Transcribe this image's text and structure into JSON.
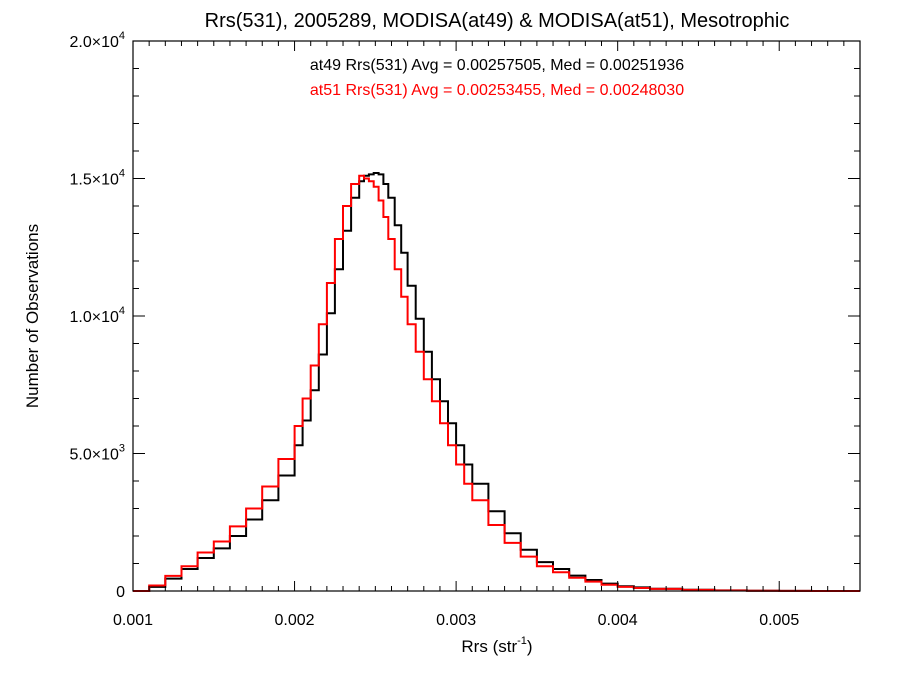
{
  "chart_data": {
    "type": "line",
    "title": "Rrs(531), 2005289, MODISA(at49) & MODISA(at51), Mesotrophic",
    "xlabel": "Rrs",
    "xlabel_unit": "(str",
    "xlabel_unit_exp": "-1",
    "xlabel_unit_close": ")",
    "ylabel": "Number of Observations",
    "xlim": [
      0.001,
      0.0055
    ],
    "ylim": [
      0,
      20000
    ],
    "x_ticks": [
      {
        "value": 0.001,
        "label": "0.001"
      },
      {
        "value": 0.002,
        "label": "0.002"
      },
      {
        "value": 0.003,
        "label": "0.003"
      },
      {
        "value": 0.004,
        "label": "0.004"
      },
      {
        "value": 0.005,
        "label": "0.005"
      }
    ],
    "y_ticks": [
      {
        "value": 0,
        "label": "0",
        "exp": ""
      },
      {
        "value": 5000,
        "label": "5.0×10",
        "exp": "3"
      },
      {
        "value": 10000,
        "label": "1.0×10",
        "exp": "4"
      },
      {
        "value": 15000,
        "label": "1.5×10",
        "exp": "4"
      },
      {
        "value": 20000,
        "label": "2.0×10",
        "exp": "4"
      }
    ],
    "annotations": [
      {
        "text": "at49 Rrs(531) Avg = 0.00257505, Med = 0.00251936",
        "color": "#000000"
      },
      {
        "text": "at51 Rrs(531) Avg = 0.00253455, Med = 0.00248030",
        "color": "#ff0000"
      }
    ],
    "series": [
      {
        "color": "#000000",
        "x": [
          0.001,
          0.0011,
          0.0012,
          0.0013,
          0.0014,
          0.0015,
          0.0016,
          0.0017,
          0.0018,
          0.0019,
          0.002,
          0.00205,
          0.0021,
          0.00215,
          0.0022,
          0.00225,
          0.0023,
          0.00235,
          0.0024,
          0.00243,
          0.00246,
          0.00249,
          0.00252,
          0.00255,
          0.00258,
          0.00262,
          0.00266,
          0.0027,
          0.00275,
          0.0028,
          0.00285,
          0.0029,
          0.00295,
          0.003,
          0.00305,
          0.0031,
          0.0032,
          0.0033,
          0.0034,
          0.0035,
          0.0036,
          0.0037,
          0.0038,
          0.0039,
          0.004,
          0.0041,
          0.0042,
          0.0044,
          0.0046,
          0.0048,
          0.005,
          0.0052,
          0.0055
        ],
        "y": [
          0,
          150,
          450,
          800,
          1200,
          1550,
          2000,
          2600,
          3300,
          4200,
          5300,
          6200,
          7300,
          8600,
          10100,
          11700,
          13100,
          14300,
          14900,
          15100,
          15150,
          15200,
          15150,
          14800,
          14300,
          13300,
          12300,
          11100,
          9900,
          8700,
          7700,
          6900,
          6100,
          5300,
          4600,
          3900,
          2900,
          2100,
          1500,
          1050,
          800,
          560,
          400,
          270,
          170,
          130,
          85,
          45,
          22,
          10,
          4,
          1,
          0
        ]
      },
      {
        "color": "#ff0000",
        "x": [
          0.001,
          0.0011,
          0.0012,
          0.0013,
          0.0014,
          0.0015,
          0.0016,
          0.0017,
          0.0018,
          0.0019,
          0.002,
          0.00205,
          0.0021,
          0.00215,
          0.0022,
          0.00225,
          0.0023,
          0.00235,
          0.0024,
          0.00243,
          0.00246,
          0.00249,
          0.00252,
          0.00255,
          0.00258,
          0.00262,
          0.00266,
          0.0027,
          0.00275,
          0.0028,
          0.00285,
          0.0029,
          0.00295,
          0.003,
          0.00305,
          0.0031,
          0.0032,
          0.0033,
          0.0034,
          0.0035,
          0.0036,
          0.0037,
          0.0038,
          0.0039,
          0.004,
          0.0041,
          0.0042,
          0.0044,
          0.0046,
          0.0048,
          0.005,
          0.0052,
          0.0055
        ],
        "y": [
          0,
          200,
          550,
          900,
          1400,
          1800,
          2350,
          3000,
          3800,
          4800,
          6000,
          7000,
          8200,
          9700,
          11200,
          12800,
          14000,
          14800,
          15100,
          15000,
          14900,
          14700,
          14200,
          13600,
          12800,
          11700,
          10700,
          9700,
          8700,
          7700,
          6900,
          6100,
          5300,
          4600,
          3900,
          3300,
          2400,
          1750,
          1250,
          900,
          680,
          480,
          340,
          230,
          150,
          110,
          75,
          40,
          20,
          9,
          3,
          1,
          0
        ]
      }
    ],
    "legend": "none",
    "grid": false
  }
}
